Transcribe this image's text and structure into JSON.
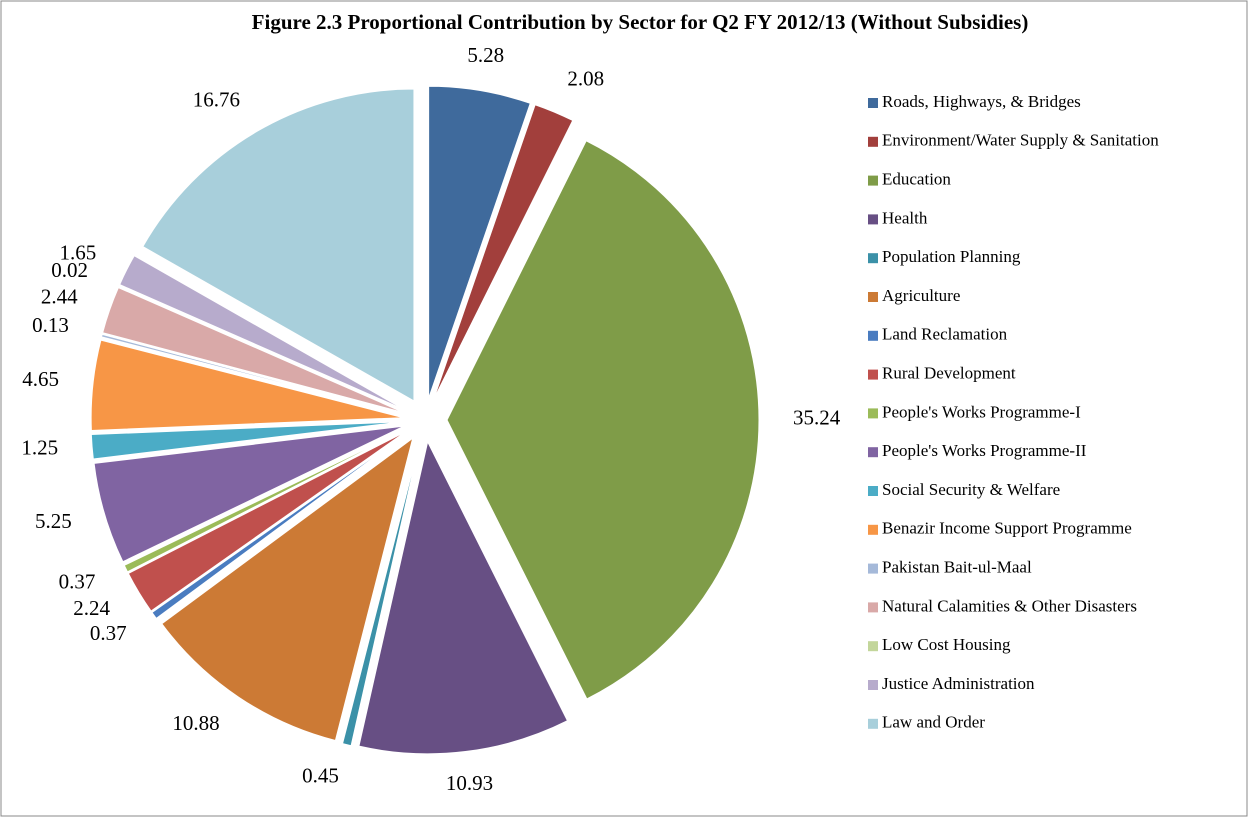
{
  "chart_data": {
    "type": "pie",
    "title": "Figure 2.3 Proportional Contribution by Sector for  Q2 FY 2012/13 (Without Subsidies)",
    "categories": [
      "Roads, Highways, & Bridges",
      "Environment/Water Supply & Sanitation",
      "Education",
      "Health",
      "Population Planning",
      "Agriculture",
      "Land Reclamation",
      "Rural Development",
      "People's Works Programme-I",
      "People's Works Programme-II",
      "Social Security & Welfare",
      "Benazir Income Support Programme",
      "Pakistan Bait-ul-Maal",
      "Natural Calamities & Other Disasters",
      "Low Cost Housing",
      "Justice Administration",
      "Law and Order"
    ],
    "values": [
      5.28,
      2.08,
      35.24,
      10.93,
      0.45,
      10.88,
      0.37,
      2.24,
      0.37,
      5.25,
      1.25,
      4.65,
      0.13,
      2.44,
      0.02,
      1.65,
      16.76
    ],
    "colors": [
      "#3f6a9c",
      "#a23f3c",
      "#7f9c48",
      "#674f84",
      "#3b91a8",
      "#cc7a35",
      "#4a7cc0",
      "#c0504d",
      "#9bbb59",
      "#8064a2",
      "#4bacc6",
      "#f79646",
      "#a5b9d9",
      "#d9a9a8",
      "#c3d69b",
      "#b7abcc",
      "#a8cfdb"
    ],
    "legend": "right"
  }
}
